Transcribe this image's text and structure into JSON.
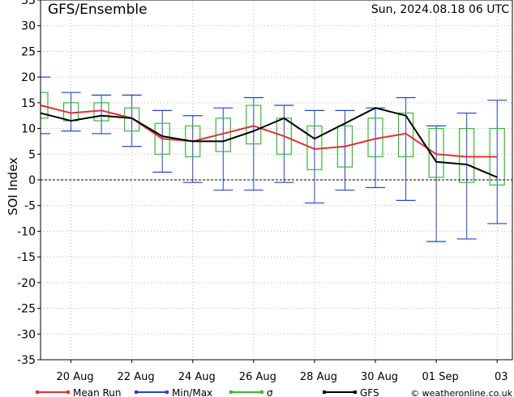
{
  "header": {
    "title": "GFS/Ensemble",
    "datetime": "Sun, 2024.08.18  06 UTC"
  },
  "chart_data": {
    "type": "line",
    "ylabel": "SOI Index",
    "ylim": [
      -35,
      35
    ],
    "yticks": [
      -35,
      -30,
      -25,
      -20,
      -15,
      -10,
      -5,
      0,
      5,
      10,
      15,
      20,
      25,
      30,
      35
    ],
    "xlim": [
      0,
      15.5
    ],
    "xticks": [
      {
        "x": 1,
        "label": "20 Aug"
      },
      {
        "x": 3,
        "label": "22 Aug"
      },
      {
        "x": 5,
        "label": "24 Aug"
      },
      {
        "x": 7,
        "label": "26 Aug"
      },
      {
        "x": 9,
        "label": "28 Aug"
      },
      {
        "x": 11,
        "label": "30 Aug"
      },
      {
        "x": 13,
        "label": "01 Sep"
      },
      {
        "x": 15,
        "label": "03"
      }
    ],
    "grid": true,
    "series": [
      {
        "name": "Mean Run",
        "color": "#dd3333",
        "x": [
          0,
          1,
          2,
          3,
          4,
          5,
          6,
          7,
          8,
          9,
          10,
          11,
          12,
          13,
          14,
          15
        ],
        "y": [
          14.5,
          13.0,
          13.5,
          12.0,
          8.0,
          7.5,
          9.0,
          10.5,
          8.5,
          6.0,
          6.5,
          8.0,
          9.0,
          5.0,
          4.5,
          4.5
        ]
      },
      {
        "name": "GFS",
        "color": "#000000",
        "x": [
          0,
          1,
          2,
          3,
          4,
          5,
          6,
          7,
          8,
          9,
          10,
          11,
          12,
          13,
          14,
          15
        ],
        "y": [
          13.0,
          11.5,
          12.5,
          12.0,
          8.5,
          7.5,
          7.5,
          9.5,
          12.0,
          8.0,
          11.0,
          14.0,
          12.5,
          3.5,
          3.0,
          0.5
        ]
      }
    ],
    "minmax": {
      "name": "Min/Max",
      "color": "#2244cc",
      "x": [
        0,
        1,
        2,
        3,
        4,
        5,
        6,
        7,
        8,
        9,
        10,
        11,
        12,
        13,
        14,
        15
      ],
      "min": [
        9,
        9.5,
        9,
        6.5,
        1.5,
        -0.5,
        -2,
        -2,
        -0.5,
        -4.5,
        -2,
        -1.5,
        -4,
        -12,
        -11.5,
        -8.5
      ],
      "max": [
        20,
        17,
        16.5,
        16.5,
        13.5,
        12.5,
        14,
        16,
        14.5,
        13.5,
        13.5,
        14,
        16,
        10.5,
        13,
        15.5
      ]
    },
    "sigma": {
      "name": "σ",
      "color": "#33bb33",
      "x": [
        0,
        1,
        2,
        3,
        4,
        5,
        6,
        7,
        8,
        9,
        10,
        11,
        12,
        13,
        14,
        15
      ],
      "low": [
        12,
        11.5,
        11.5,
        9.5,
        5,
        4.5,
        5.5,
        7,
        5,
        2,
        2.5,
        4.5,
        4.5,
        0.5,
        -0.5,
        -1
      ],
      "high": [
        17,
        15,
        15,
        14,
        11,
        10.5,
        12,
        14.5,
        12,
        10.5,
        10.5,
        12,
        13,
        10,
        10,
        10
      ]
    }
  },
  "legend": {
    "items": [
      {
        "label": "Mean Run",
        "color": "#dd3333"
      },
      {
        "label": "Min/Max",
        "color": "#2244cc"
      },
      {
        "label": "σ",
        "color": "#33bb33"
      },
      {
        "label": "GFS",
        "color": "#000000"
      }
    ],
    "credit": "© weatheronline.co.uk"
  }
}
